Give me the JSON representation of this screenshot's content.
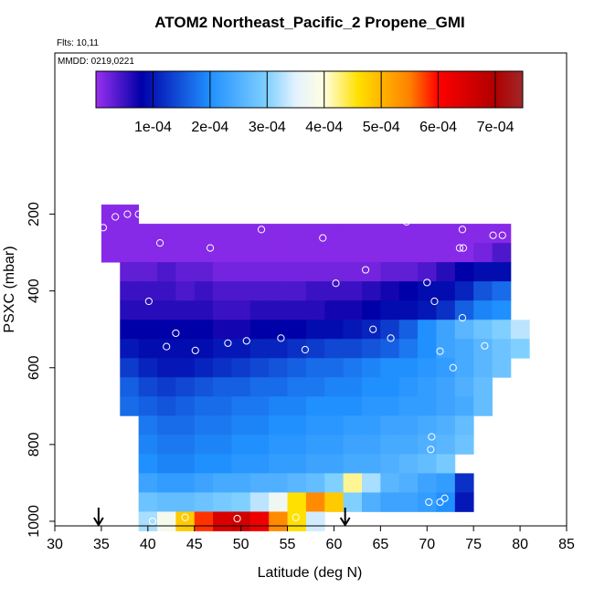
{
  "chart_data": {
    "type": "heatmap",
    "title": "ATOM2 Northeast_Pacific_2 Propene_GMI",
    "flights_label": "Flts: 10,11",
    "dates_label": "MMDD: 0219,0221",
    "x_label": "Latitude (deg N)",
    "y_label": "PSXC (mbar)",
    "xlim": [
      30,
      85
    ],
    "xticks": [
      30,
      35,
      40,
      45,
      50,
      55,
      60,
      65,
      70,
      75,
      80,
      85
    ],
    "ylim": [
      1012,
      -220
    ],
    "yticks": [
      200,
      400,
      600,
      800,
      1000
    ],
    "lat_edges": [
      35,
      37,
      39,
      41,
      43,
      45,
      47,
      49,
      51,
      53,
      55,
      57,
      59,
      61,
      63,
      65,
      67,
      69,
      71,
      73,
      75,
      77,
      79,
      81
    ],
    "pressures": [
      200,
      250,
      300,
      350,
      400,
      450,
      500,
      550,
      600,
      650,
      700,
      750,
      800,
      850,
      900,
      950,
      1000
    ],
    "values": [
      [
        1e-05,
        1e-05,
        null,
        null,
        null,
        null,
        null,
        null,
        null,
        null,
        null,
        null,
        null,
        null,
        null,
        null,
        null,
        null,
        null,
        null,
        null,
        null,
        null
      ],
      [
        1e-05,
        1e-05,
        1e-05,
        1e-05,
        1e-05,
        1e-05,
        1e-05,
        1e-05,
        1e-05,
        1e-05,
        1e-05,
        1e-05,
        1e-05,
        1e-05,
        1e-05,
        1e-05,
        1e-05,
        1e-05,
        1e-05,
        1e-05,
        1e-05,
        1e-05,
        null
      ],
      [
        1e-05,
        1e-05,
        1e-05,
        1e-05,
        1e-05,
        1e-05,
        1e-05,
        1e-05,
        1e-05,
        1e-05,
        1e-05,
        1e-05,
        1e-05,
        1e-05,
        1e-05,
        1e-05,
        1e-05,
        1e-05,
        1e-05,
        1e-05,
        2e-05,
        4e-05,
        null
      ],
      [
        null,
        3e-05,
        3e-05,
        4e-05,
        3e-05,
        3e-05,
        2e-05,
        2e-05,
        2e-05,
        2e-05,
        2e-05,
        2e-05,
        2e-05,
        2e-05,
        2e-05,
        3e-05,
        3e-05,
        4e-05,
        6e-05,
        8e-05,
        9e-05,
        9e-05,
        null
      ],
      [
        null,
        5e-05,
        5e-05,
        5e-05,
        4e-05,
        5e-05,
        4e-05,
        4e-05,
        4e-05,
        4e-05,
        4e-05,
        5e-05,
        5e-05,
        5e-05,
        6e-05,
        7e-05,
        8e-05,
        9e-05,
        9e-05,
        0.00011,
        0.00015,
        0.00017,
        null
      ],
      [
        null,
        6e-05,
        6e-05,
        6e-05,
        6e-05,
        6e-05,
        5e-05,
        5e-05,
        6e-05,
        6e-05,
        6e-05,
        6e-05,
        7e-05,
        7e-05,
        8e-05,
        9e-05,
        9e-05,
        0.0001,
        0.00012,
        0.00016,
        0.00019,
        0.0002,
        null
      ],
      [
        null,
        8e-05,
        8e-05,
        8e-05,
        8e-05,
        8e-05,
        7e-05,
        7e-05,
        8e-05,
        8e-05,
        8e-05,
        9e-05,
        9e-05,
        0.0001,
        0.00011,
        0.00013,
        0.00016,
        0.0002,
        0.00023,
        0.00026,
        0.00028,
        0.0003,
        0.00033
      ],
      [
        null,
        0.0001,
        9e-05,
        9e-05,
        9e-05,
        9e-05,
        0.0001,
        0.0001,
        0.00011,
        0.00011,
        0.00012,
        0.00013,
        0.00014,
        0.00014,
        0.00015,
        0.00016,
        0.00018,
        0.0002,
        0.00023,
        0.00024,
        0.00026,
        0.00028,
        0.0003
      ],
      [
        null,
        0.00013,
        0.00011,
        0.0001,
        0.0001,
        0.00011,
        0.00012,
        0.00013,
        0.00014,
        0.00015,
        0.00016,
        0.00017,
        0.00017,
        0.00018,
        0.00019,
        0.0002,
        0.0002,
        0.00021,
        0.00022,
        0.00024,
        0.00026,
        0.00028,
        null
      ],
      [
        null,
        0.00016,
        0.00014,
        0.00013,
        0.00014,
        0.00015,
        0.00016,
        0.00016,
        0.00017,
        0.00017,
        0.00018,
        0.00018,
        0.00019,
        0.00019,
        0.0002,
        0.0002,
        0.00021,
        0.00022,
        0.00023,
        0.00025,
        0.00027,
        null,
        null
      ],
      [
        null,
        0.00017,
        0.00016,
        0.00015,
        0.00016,
        0.00017,
        0.00017,
        0.00018,
        0.00018,
        0.00019,
        0.00019,
        0.0002,
        0.0002,
        0.0002,
        0.00021,
        0.00021,
        0.00022,
        0.00022,
        0.00023,
        0.00024,
        0.00027,
        null,
        null
      ],
      [
        null,
        null,
        0.00018,
        0.00017,
        0.00017,
        0.00018,
        0.00018,
        0.00019,
        0.00019,
        0.0002,
        0.0002,
        0.00021,
        0.00021,
        0.00022,
        0.00022,
        0.00023,
        0.00023,
        0.00024,
        0.00025,
        0.00027,
        null,
        null,
        null
      ],
      [
        null,
        null,
        0.00019,
        0.00018,
        0.00018,
        0.00019,
        0.00019,
        0.0002,
        0.0002,
        0.00021,
        0.00021,
        0.00022,
        0.00022,
        0.00023,
        0.00023,
        0.00024,
        0.00024,
        0.00025,
        0.00026,
        0.00028,
        null,
        null,
        null
      ],
      [
        null,
        null,
        0.0002,
        0.00019,
        0.00019,
        0.0002,
        0.0002,
        0.00021,
        0.00021,
        0.00022,
        0.00022,
        0.00023,
        0.00023,
        0.00024,
        0.00024,
        0.00025,
        0.00026,
        0.00027,
        0.00029,
        null,
        null,
        null,
        null
      ],
      [
        null,
        null,
        0.00023,
        0.00022,
        0.00022,
        0.00023,
        0.00024,
        0.00024,
        0.00025,
        0.00025,
        0.00026,
        0.00027,
        0.0003,
        0.00042,
        0.00032,
        0.00026,
        0.00025,
        0.00023,
        0.00022,
        0.00012,
        null,
        null,
        null
      ],
      [
        null,
        null,
        0.00028,
        0.00027,
        0.00027,
        0.00028,
        0.00029,
        0.0003,
        0.00033,
        0.00037,
        0.00046,
        0.00054,
        0.00048,
        0.0003,
        0.00025,
        0.00023,
        0.00023,
        0.00022,
        0.0002,
        0.0001,
        null,
        null,
        null
      ],
      [
        null,
        null,
        0.00032,
        0.00038,
        0.00048,
        0.00058,
        0.00065,
        0.00066,
        0.00062,
        0.00054,
        0.00046,
        0.00034,
        null,
        null,
        null,
        null,
        null,
        null,
        null,
        null,
        null,
        null,
        null
      ]
    ],
    "colorbar": {
      "lim": [
        0,
        0.000748
      ],
      "ticks": [
        {
          "value": 0.0001,
          "label": "1e-04"
        },
        {
          "value": 0.0002,
          "label": "2e-04"
        },
        {
          "value": 0.0003,
          "label": "3e-04"
        },
        {
          "value": 0.0004,
          "label": "4e-04"
        },
        {
          "value": 0.0005,
          "label": "5e-04"
        },
        {
          "value": 0.0006,
          "label": "6e-04"
        },
        {
          "value": 0.0007,
          "label": "7e-04"
        }
      ],
      "scale": [
        {
          "value": 0,
          "color": "#9a30f0"
        },
        {
          "value": 8e-05,
          "color": "#0000a8"
        },
        {
          "value": 0.0002,
          "color": "#2090ff"
        },
        {
          "value": 0.0003,
          "color": "#80d0ff"
        },
        {
          "value": 0.00035,
          "color": "#e4f2ff"
        },
        {
          "value": 0.0004,
          "color": "#ffffe0"
        },
        {
          "value": 0.00046,
          "color": "#ffe000"
        },
        {
          "value": 0.00055,
          "color": "#ff8000"
        },
        {
          "value": 0.0006,
          "color": "#ff0000"
        },
        {
          "value": 0.0007,
          "color": "#b00000"
        },
        {
          "value": 0.000748,
          "color": "#a02828"
        }
      ]
    },
    "points": {
      "lat": [
        35.2,
        36.5,
        37.8,
        39,
        41.3,
        46.7,
        52.2,
        58.8,
        63.4,
        67.8,
        73.8,
        73.5,
        73.9,
        77.1,
        78.1,
        60.2,
        70,
        40.1,
        70.8,
        42,
        43,
        45.1,
        48.6,
        50.6,
        54.3,
        56.9,
        64.2,
        66.1,
        71.4,
        72.8,
        73.8,
        76.2,
        80,
        70.5,
        70.4,
        70.2,
        71.4,
        71.9,
        40.5,
        44,
        49.6,
        55.9
      ],
      "pressure": [
        235,
        207,
        200,
        200,
        275,
        288,
        240,
        262,
        345,
        220,
        240,
        288,
        288,
        255,
        255,
        380,
        378,
        427,
        427,
        545,
        510,
        555,
        536,
        530,
        523,
        553,
        500,
        523,
        557,
        600,
        470,
        543,
        466,
        780,
        813,
        950,
        950,
        940,
        1000,
        990,
        993,
        990
      ]
    },
    "arrows": [
      34.7,
      61.2
    ]
  }
}
